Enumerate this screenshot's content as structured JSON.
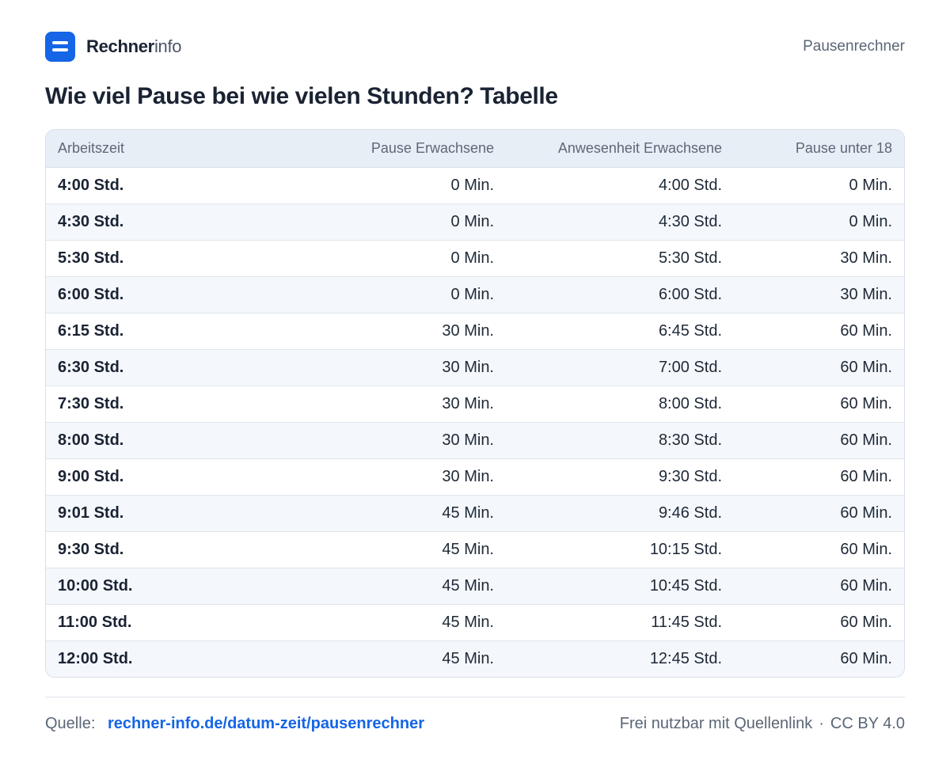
{
  "header": {
    "brand_bold": "Rechner",
    "brand_light": "info",
    "page_label": "Pausenrechner",
    "logo_icon": "menu-bars-icon",
    "accent_color": "#1565e6"
  },
  "title": "Wie viel Pause bei wie vielen Stunden? Tabelle",
  "table": {
    "columns": [
      "Arbeitszeit",
      "Pause Erwachsene",
      "Anwesenheit Erwachsene",
      "Pause unter 18"
    ],
    "rows": [
      [
        "4:00 Std.",
        "0 Min.",
        "4:00 Std.",
        "0 Min."
      ],
      [
        "4:30 Std.",
        "0 Min.",
        "4:30 Std.",
        "0 Min."
      ],
      [
        "5:30 Std.",
        "0 Min.",
        "5:30 Std.",
        "30 Min."
      ],
      [
        "6:00 Std.",
        "0 Min.",
        "6:00 Std.",
        "30 Min."
      ],
      [
        "6:15 Std.",
        "30 Min.",
        "6:45 Std.",
        "60 Min."
      ],
      [
        "6:30 Std.",
        "30 Min.",
        "7:00 Std.",
        "60 Min."
      ],
      [
        "7:30 Std.",
        "30 Min.",
        "8:00 Std.",
        "60 Min."
      ],
      [
        "8:00 Std.",
        "30 Min.",
        "8:30 Std.",
        "60 Min."
      ],
      [
        "9:00 Std.",
        "30 Min.",
        "9:30 Std.",
        "60 Min."
      ],
      [
        "9:01 Std.",
        "45 Min.",
        "9:46 Std.",
        "60 Min."
      ],
      [
        "9:30 Std.",
        "45 Min.",
        "10:15 Std.",
        "60 Min."
      ],
      [
        "10:00 Std.",
        "45 Min.",
        "10:45 Std.",
        "60 Min."
      ],
      [
        "11:00 Std.",
        "45 Min.",
        "11:45 Std.",
        "60 Min."
      ],
      [
        "12:00 Std.",
        "45 Min.",
        "12:45 Std.",
        "60 Min."
      ]
    ]
  },
  "footer": {
    "source_label": "Quelle:",
    "source_link": "rechner-info.de/datum-zeit/pausenrechner",
    "license_text": "Frei nutzbar mit Quellenlink",
    "separator": "·",
    "license_name": "CC BY 4.0"
  }
}
